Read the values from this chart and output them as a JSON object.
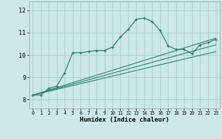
{
  "xlabel": "Humidex (Indice chaleur)",
  "bg_color": "#cce8e8",
  "grid_color": "#aacccc",
  "line_color": "#2e7d72",
  "xlim": [
    -0.5,
    23.5
  ],
  "ylim": [
    7.6,
    12.4
  ],
  "xticks": [
    0,
    1,
    2,
    3,
    4,
    5,
    6,
    7,
    8,
    9,
    10,
    11,
    12,
    13,
    14,
    15,
    16,
    17,
    18,
    19,
    20,
    21,
    22,
    23
  ],
  "yticks": [
    8,
    9,
    10,
    11,
    12
  ],
  "curve1_x": [
    0,
    1,
    2,
    3,
    4,
    5,
    6,
    7,
    8,
    9,
    10,
    11,
    12,
    13,
    14,
    15,
    16,
    17,
    18,
    19,
    20,
    21,
    22,
    23
  ],
  "curve1_y": [
    8.2,
    8.2,
    8.5,
    8.6,
    9.2,
    10.1,
    10.1,
    10.15,
    10.2,
    10.2,
    10.35,
    10.8,
    11.15,
    11.6,
    11.65,
    11.5,
    11.1,
    10.4,
    10.25,
    10.25,
    10.05,
    10.45,
    10.55,
    10.7
  ],
  "curve2_x": [
    0,
    23
  ],
  "curve2_y": [
    8.2,
    10.75
  ],
  "curve3_x": [
    0,
    23
  ],
  "curve3_y": [
    8.2,
    10.45
  ],
  "curve4_x": [
    0,
    23
  ],
  "curve4_y": [
    8.2,
    10.15
  ]
}
